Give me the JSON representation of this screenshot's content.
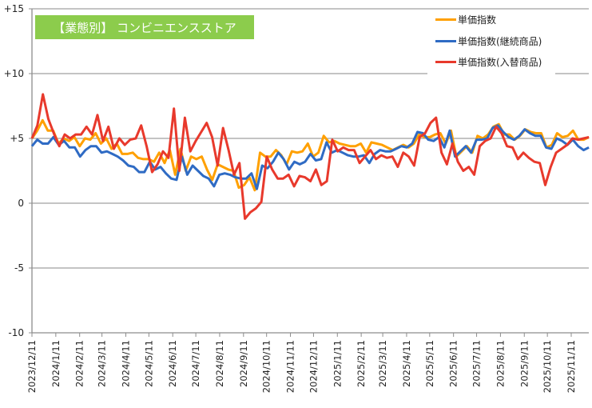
{
  "chart_data": {
    "type": "line",
    "title": "【業態別】 コンビニエンスストア",
    "xlabel": "",
    "ylabel": "",
    "ylim": [
      -10,
      15
    ],
    "yticks": [
      15,
      10,
      5,
      0,
      -5,
      -10
    ],
    "ytick_labels": [
      "+15",
      "+10",
      "+5",
      "0",
      "-5",
      "-10"
    ],
    "grid": true,
    "legend_position": "top-right",
    "x_tick_labels": [
      "2023/12/11",
      "2024/1/11",
      "2024/2/11",
      "2024/3/11",
      "2024/4/11",
      "2024/5/11",
      "2024/6/11",
      "2024/7/11",
      "2024/8/11",
      "2024/9/11",
      "2024/10/11",
      "2024/11/11",
      "2024/12/11",
      "2025/1/11",
      "2025/2/11",
      "2025/3/11",
      "2025/4/11",
      "2025/5/11",
      "2025/6/11",
      "2025/7/11",
      "2025/8/11",
      "2025/9/11",
      "2025/10/11",
      "2025/11/11"
    ],
    "x_tick_days": [
      0,
      31,
      62,
      91,
      122,
      152,
      183,
      213,
      244,
      275,
      305,
      336,
      366,
      397,
      428,
      456,
      487,
      517,
      548,
      578,
      609,
      640,
      670,
      701
    ],
    "x_span_days": 724,
    "series": [
      {
        "name": "単価指数",
        "color": "#ffa000",
        "values": [
          5.0,
          5.6,
          6.4,
          5.6,
          5.6,
          4.6,
          5.0,
          4.8,
          5.1,
          4.4,
          5.0,
          4.9,
          5.4,
          4.6,
          5.0,
          4.2,
          4.6,
          3.8,
          3.8,
          3.9,
          3.5,
          3.4,
          3.4,
          3.2,
          3.9,
          3.1,
          4.1,
          2.2,
          4.2,
          2.5,
          3.6,
          3.4,
          3.6,
          2.6,
          1.8,
          3.0,
          2.8,
          2.6,
          2.5,
          1.2,
          1.4,
          2.0,
          1.0,
          3.9,
          3.6,
          3.6,
          4.1,
          3.7,
          3.0,
          4.0,
          3.9,
          4.0,
          4.6,
          3.6,
          3.9,
          5.2,
          4.7,
          4.8,
          4.6,
          4.5,
          4.4,
          4.4,
          4.6,
          3.9,
          4.7,
          4.6,
          4.5,
          4.3,
          4.1,
          4.3,
          4.5,
          4.3,
          4.6,
          5.3,
          5.1,
          5.1,
          5.3,
          5.4,
          4.6,
          5.6,
          3.6,
          4.0,
          4.4,
          3.9,
          5.2,
          5.0,
          5.3,
          5.9,
          6.1,
          5.3,
          5.3,
          4.9,
          5.2,
          5.7,
          5.5,
          5.4,
          5.4,
          4.3,
          4.5,
          5.4,
          5.1,
          5.2,
          5.6,
          4.9,
          4.9,
          5.1
        ]
      },
      {
        "name": "単価指数(継続商品)",
        "color": "#2f6bc4",
        "values": [
          4.4,
          4.9,
          4.6,
          4.6,
          5.1,
          4.5,
          4.8,
          4.3,
          4.3,
          3.6,
          4.1,
          4.4,
          4.4,
          3.9,
          4.0,
          3.8,
          3.6,
          3.3,
          2.9,
          2.8,
          2.4,
          2.4,
          3.2,
          2.6,
          2.8,
          2.3,
          1.9,
          1.8,
          3.6,
          2.2,
          2.9,
          2.5,
          2.1,
          1.9,
          1.3,
          2.2,
          2.3,
          2.2,
          2.0,
          1.9,
          1.9,
          2.3,
          1.1,
          2.9,
          2.7,
          3.2,
          3.9,
          3.4,
          2.6,
          3.2,
          3.0,
          3.2,
          3.8,
          3.3,
          3.4,
          4.7,
          3.9,
          4.1,
          3.9,
          3.7,
          3.6,
          3.6,
          3.7,
          3.1,
          3.8,
          4.1,
          4.0,
          4.0,
          4.2,
          4.4,
          4.3,
          4.6,
          5.5,
          5.4,
          4.9,
          4.8,
          5.1,
          4.3,
          5.6,
          3.6,
          4.0,
          4.4,
          3.9,
          4.9,
          4.9,
          5.0,
          5.8,
          6.0,
          5.5,
          5.1,
          4.9,
          5.2,
          5.7,
          5.4,
          5.2,
          5.2,
          4.3,
          4.2,
          5.0,
          4.8,
          4.5,
          4.9,
          4.4,
          4.1,
          4.3
        ]
      },
      {
        "name": "単価指数(入替商品)",
        "color": "#e8392c",
        "values": [
          5.0,
          6.0,
          8.4,
          6.5,
          5.4,
          4.4,
          5.3,
          5.0,
          5.3,
          5.3,
          5.9,
          5.3,
          6.8,
          4.8,
          5.9,
          4.2,
          5.0,
          4.5,
          4.9,
          5.0,
          6.0,
          4.4,
          2.4,
          3.0,
          4.0,
          3.5,
          7.3,
          2.5,
          6.6,
          4.0,
          4.8,
          5.5,
          6.2,
          5.1,
          2.9,
          5.8,
          4.1,
          2.2,
          3.1,
          -1.2,
          -0.7,
          -0.4,
          0.1,
          3.6,
          2.6,
          1.9,
          1.9,
          2.2,
          1.3,
          2.1,
          2.0,
          1.7,
          2.6,
          1.4,
          1.7,
          4.9,
          4.0,
          4.3,
          4.1,
          4.1,
          3.1,
          3.6,
          4.1,
          3.4,
          3.7,
          3.5,
          3.6,
          2.8,
          3.9,
          3.6,
          2.9,
          5.1,
          5.4,
          6.2,
          6.6,
          3.9,
          3.0,
          4.6,
          3.2,
          2.5,
          2.8,
          2.2,
          4.4,
          4.8,
          5.0,
          5.9,
          5.4,
          4.4,
          4.3,
          3.4,
          3.9,
          3.5,
          3.2,
          3.1,
          1.4,
          2.8,
          3.9,
          4.2,
          4.5,
          5.0,
          4.9,
          5.0,
          5.1
        ]
      }
    ]
  }
}
